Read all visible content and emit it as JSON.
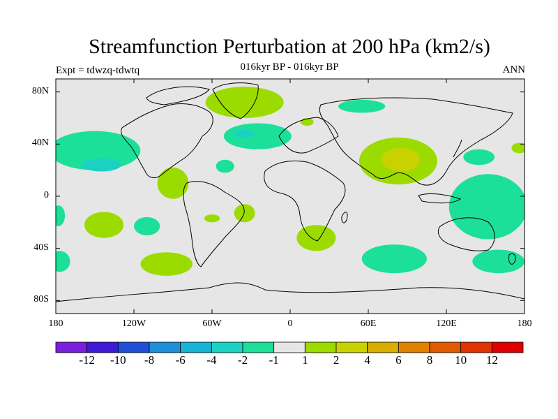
{
  "title": "Streamfunction Perturbation at 200 hPa (km2/s)",
  "subtitle": "016kyr BP - 016kyr BP",
  "expt_label": "Expt = tdwzq-tdwtq",
  "season": "ANN",
  "map": {
    "projection": "cylindrical-equidistant",
    "lon_range": [
      -180,
      180
    ],
    "lat_range": [
      -90,
      90
    ],
    "y_ticks": [
      {
        "lat": 80,
        "label": "80N"
      },
      {
        "lat": 40,
        "label": "40N"
      },
      {
        "lat": 0,
        "label": "0"
      },
      {
        "lat": -40,
        "label": "40S"
      },
      {
        "lat": -80,
        "label": "80S"
      }
    ],
    "x_ticks": [
      {
        "lon": -180,
        "label": "180"
      },
      {
        "lon": -120,
        "label": "120W"
      },
      {
        "lon": -60,
        "label": "60W"
      },
      {
        "lon": 0,
        "label": "0"
      },
      {
        "lon": 60,
        "label": "60E"
      },
      {
        "lon": 120,
        "label": "120E"
      },
      {
        "lon": 180,
        "label": "180"
      }
    ],
    "background_color": "#e6e6e6",
    "anomaly_regions": [
      {
        "name": "arctic-greenland",
        "sign": "positive",
        "level": 1,
        "lon": -35,
        "lat": 72,
        "rx": 30,
        "ry": 12
      },
      {
        "name": "north-atlantic",
        "sign": "negative",
        "level": -1,
        "lon": -25,
        "lat": 46,
        "rx": 26,
        "ry": 10
      },
      {
        "name": "north-atlantic-core",
        "sign": "negative",
        "level": -2,
        "lon": -35,
        "lat": 48,
        "rx": 8,
        "ry": 3
      },
      {
        "name": "scandinavia",
        "sign": "negative",
        "level": -1,
        "lon": 55,
        "lat": 69,
        "rx": 18,
        "ry": 5
      },
      {
        "name": "siberia-small",
        "sign": "positive",
        "level": 1,
        "lon": 13,
        "lat": 57,
        "rx": 5,
        "ry": 3
      },
      {
        "name": "north-pacific",
        "sign": "negative",
        "level": -1,
        "lon": -150,
        "lat": 35,
        "rx": 35,
        "ry": 15
      },
      {
        "name": "north-pacific-core",
        "sign": "negative",
        "level": -2,
        "lon": -145,
        "lat": 24,
        "rx": 15,
        "ry": 5
      },
      {
        "name": "tibet-asia",
        "sign": "positive",
        "level": 1,
        "lon": 83,
        "lat": 27,
        "rx": 30,
        "ry": 18
      },
      {
        "name": "tibet-core",
        "sign": "positive",
        "level": 2,
        "lon": 85,
        "lat": 28,
        "rx": 15,
        "ry": 9
      },
      {
        "name": "central-america",
        "sign": "positive",
        "level": 1,
        "lon": -90,
        "lat": 10,
        "rx": 12,
        "ry": 12
      },
      {
        "name": "central-atlantic",
        "sign": "negative",
        "level": -1,
        "lon": -50,
        "lat": 23,
        "rx": 7,
        "ry": 5
      },
      {
        "name": "west-pacific-30n",
        "sign": "negative",
        "level": -1,
        "lon": 145,
        "lat": 30,
        "rx": 12,
        "ry": 6
      },
      {
        "name": "east-asia-40n",
        "sign": "positive",
        "level": 1,
        "lon": 176,
        "lat": 37,
        "rx": 6,
        "ry": 4
      },
      {
        "name": "tropical-west-pacific",
        "sign": "negative",
        "level": -1,
        "lon": 152,
        "lat": -8,
        "rx": 30,
        "ry": 25
      },
      {
        "name": "south-pacific-east",
        "sign": "positive",
        "level": 1,
        "lon": -143,
        "lat": -22,
        "rx": 15,
        "ry": 10
      },
      {
        "name": "south-pacific-central",
        "sign": "negative",
        "level": -1,
        "lon": -110,
        "lat": -23,
        "rx": 10,
        "ry": 7
      },
      {
        "name": "south-atlantic-small",
        "sign": "positive",
        "level": 1,
        "lon": -60,
        "lat": -17,
        "rx": 6,
        "ry": 3
      },
      {
        "name": "brazil",
        "sign": "positive",
        "level": 1,
        "lon": -35,
        "lat": -13,
        "rx": 8,
        "ry": 7
      },
      {
        "name": "south-pacific-40s",
        "sign": "positive",
        "level": 1,
        "lon": -95,
        "lat": -52,
        "rx": 20,
        "ry": 9
      },
      {
        "name": "south-africa",
        "sign": "positive",
        "level": 1,
        "lon": 20,
        "lat": -32,
        "rx": 15,
        "ry": 10
      },
      {
        "name": "indian-ocean-50s",
        "sign": "negative",
        "level": -1,
        "lon": 80,
        "lat": -48,
        "rx": 25,
        "ry": 11
      },
      {
        "name": "australia-south",
        "sign": "negative",
        "level": -1,
        "lon": 160,
        "lat": -50,
        "rx": 20,
        "ry": 9
      },
      {
        "name": "south-pacific-west",
        "sign": "negative",
        "level": -1,
        "lon": -177,
        "lat": -50,
        "rx": 8,
        "ry": 8
      },
      {
        "name": "east-pacific-20s",
        "sign": "negative",
        "level": -1,
        "lon": -178,
        "lat": -15,
        "rx": 5,
        "ry": 8
      }
    ]
  },
  "colorbar": {
    "colors": [
      "#7a1fdc",
      "#3d1ad8",
      "#1f4fd6",
      "#1c8fd8",
      "#18b4d6",
      "#1bd1c4",
      "#1ce09a",
      "#e6e6e6",
      "#9cdb00",
      "#c9d200",
      "#d8ae00",
      "#df8200",
      "#e15a00",
      "#e03300",
      "#e00000"
    ],
    "labels": [
      "-12",
      "-10",
      "-8",
      "-6",
      "-4",
      "-2",
      "-1",
      "1",
      "2",
      "4",
      "6",
      "8",
      "10",
      "12"
    ]
  }
}
